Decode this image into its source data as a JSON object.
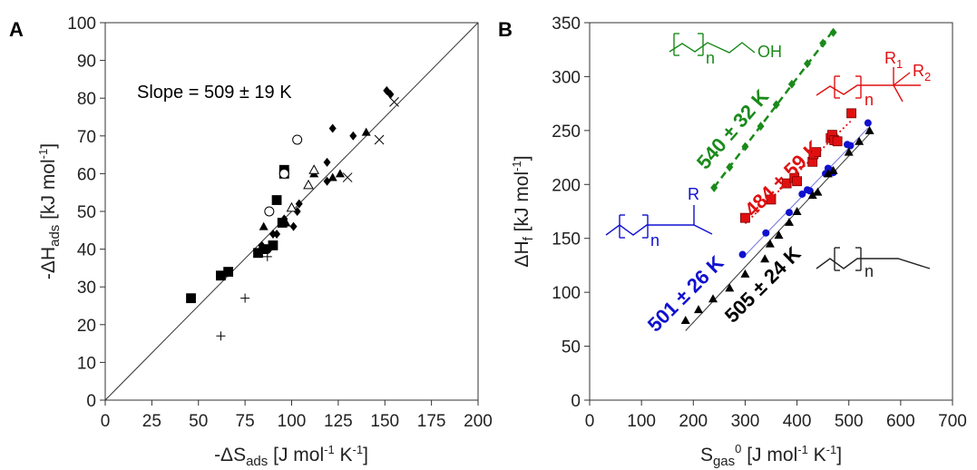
{
  "colors": {
    "black": "#000000",
    "green": "#1a8a1a",
    "red": "#e01010",
    "blue": "#1010d0",
    "blueLine": "#7070dd"
  },
  "chart_data": [
    {
      "panel": "A",
      "type": "scatter",
      "xlabel_prefix": "-ΔS",
      "xlabel_sub": "ads",
      "xlabel_unit_a": " [J mol",
      "xlabel_sup1": "-1",
      "xlabel_unit_b": " K",
      "xlabel_sup2": "-1",
      "xlabel_end": "]",
      "ylabel_prefix": "-ΔH",
      "ylabel_sub": "ads",
      "ylabel_unit": " [kJ mol",
      "ylabel_sup": "-1",
      "ylabel_end": "]",
      "xlim": [
        0,
        200
      ],
      "ylim": [
        0,
        100
      ],
      "xticks": [
        0,
        25,
        50,
        75,
        100,
        125,
        150,
        175,
        200
      ],
      "yticks": [
        0,
        10,
        20,
        30,
        40,
        50,
        60,
        70,
        80,
        90,
        100
      ],
      "annotation": "Slope = 509 ± 19 K",
      "fit_line": {
        "slope": 0.509,
        "x": [
          0,
          200
        ]
      },
      "series": [
        {
          "marker": "square",
          "points": [
            [
              46,
              27
            ],
            [
              62,
              33
            ],
            [
              66,
              34
            ],
            [
              82,
              39
            ],
            [
              85,
              40
            ],
            [
              90,
              41
            ],
            [
              95,
              47
            ],
            [
              92,
              53
            ],
            [
              96,
              60
            ],
            [
              96,
              61
            ]
          ]
        },
        {
          "marker": "diamond",
          "points": [
            [
              84,
              41
            ],
            [
              88,
              40
            ],
            [
              90,
              44
            ],
            [
              92,
              44
            ],
            [
              96,
              48
            ],
            [
              101,
              46
            ],
            [
              103,
              50
            ],
            [
              104,
              52
            ],
            [
              119,
              58
            ],
            [
              119,
              63
            ],
            [
              122,
              72
            ],
            [
              133,
              70
            ],
            [
              151,
              82
            ],
            [
              153,
              81
            ]
          ]
        },
        {
          "marker": "triangle",
          "points": [
            [
              85,
              46
            ],
            [
              97,
              47
            ],
            [
              112,
              60
            ],
            [
              122,
              59
            ],
            [
              126,
              60
            ],
            [
              140,
              71
            ]
          ]
        },
        {
          "marker": "circle-open",
          "points": [
            [
              88,
              50
            ],
            [
              96,
              60
            ],
            [
              103,
              69
            ]
          ]
        },
        {
          "marker": "triangle-open",
          "points": [
            [
              100,
              51
            ],
            [
              109,
              57
            ],
            [
              112,
              61
            ]
          ]
        },
        {
          "marker": "x",
          "points": [
            [
              130,
              59
            ],
            [
              147,
              69
            ],
            [
              155,
              79
            ]
          ]
        },
        {
          "marker": "plus",
          "points": [
            [
              62,
              17
            ],
            [
              75,
              27
            ],
            [
              87,
              38
            ]
          ]
        }
      ]
    },
    {
      "panel": "B",
      "type": "scatter",
      "xlabel_prefix": "S",
      "xlabel_sub": "gas",
      "xlabel_sup0": "0",
      "xlabel_unit_a": " [J mol",
      "xlabel_sup1": "-1",
      "xlabel_unit_b": " K",
      "xlabel_sup2": "-1",
      "xlabel_end": "]",
      "ylabel_prefix": "ΔH",
      "ylabel_sub": "f",
      "ylabel_unit": " [kJ mol",
      "ylabel_sup": "-1",
      "ylabel_end": "]",
      "xlim": [
        0,
        700
      ],
      "ylim": [
        0,
        350
      ],
      "xticks": [
        0,
        100,
        200,
        300,
        400,
        500,
        600,
        700
      ],
      "yticks": [
        0,
        50,
        100,
        150,
        200,
        250,
        300,
        350
      ],
      "series": [
        {
          "color": "green",
          "marker": "diamond",
          "line": "dashed",
          "label": "540 ± 32 K",
          "points": [
            [
              240,
              197
            ],
            [
              270,
              216
            ],
            [
              300,
              235
            ],
            [
              330,
              254
            ],
            [
              360,
              274
            ],
            [
              390,
              293
            ],
            [
              420,
              312
            ],
            [
              450,
              331
            ],
            [
              470,
              341
            ]
          ]
        },
        {
          "color": "red",
          "marker": "square",
          "line": "dotted",
          "label": "484 ± 59 K",
          "points": [
            [
              300,
              169
            ],
            [
              350,
              186
            ],
            [
              380,
              201
            ],
            [
              395,
              206
            ],
            [
              400,
              203
            ],
            [
              430,
              221
            ],
            [
              432,
              228
            ],
            [
              437,
              230
            ],
            [
              465,
              243
            ],
            [
              468,
              246
            ],
            [
              472,
              241
            ],
            [
              478,
              240
            ],
            [
              505,
              266
            ]
          ]
        },
        {
          "color": "blue",
          "marker": "circle",
          "line": "solid",
          "label": "501 ± 26 K",
          "points": [
            [
              295,
              135
            ],
            [
              340,
              155
            ],
            [
              385,
              174
            ],
            [
              410,
              191
            ],
            [
              420,
              195
            ],
            [
              425,
              194
            ],
            [
              455,
              210
            ],
            [
              460,
              215
            ],
            [
              465,
              213
            ],
            [
              470,
              211
            ],
            [
              497,
              237
            ],
            [
              503,
              236
            ],
            [
              537,
              257
            ]
          ]
        },
        {
          "color": "black",
          "marker": "triangle",
          "line": "solid",
          "label": "505 ± 24 K",
          "points": [
            [
              185,
              74
            ],
            [
              210,
              84
            ],
            [
              238,
              94
            ],
            [
              270,
              104
            ],
            [
              300,
              117
            ],
            [
              338,
              131
            ],
            [
              348,
              145
            ],
            [
              365,
              153
            ],
            [
              385,
              165
            ],
            [
              400,
              175
            ],
            [
              430,
              190
            ],
            [
              440,
              193
            ],
            [
              460,
              210
            ],
            [
              470,
              213
            ],
            [
              500,
              230
            ],
            [
              520,
              240
            ],
            [
              540,
              250
            ]
          ]
        }
      ],
      "structures": {
        "green_text_n": "n",
        "green_text_oh": "OH",
        "red_text_n": "n",
        "red_text_r1": "R",
        "red_sub_r1": "1",
        "red_text_r2": "R",
        "red_sub_r2": "2",
        "blue_text_n": "n",
        "blue_text_r": "R",
        "black_text_n": "n"
      }
    }
  ]
}
